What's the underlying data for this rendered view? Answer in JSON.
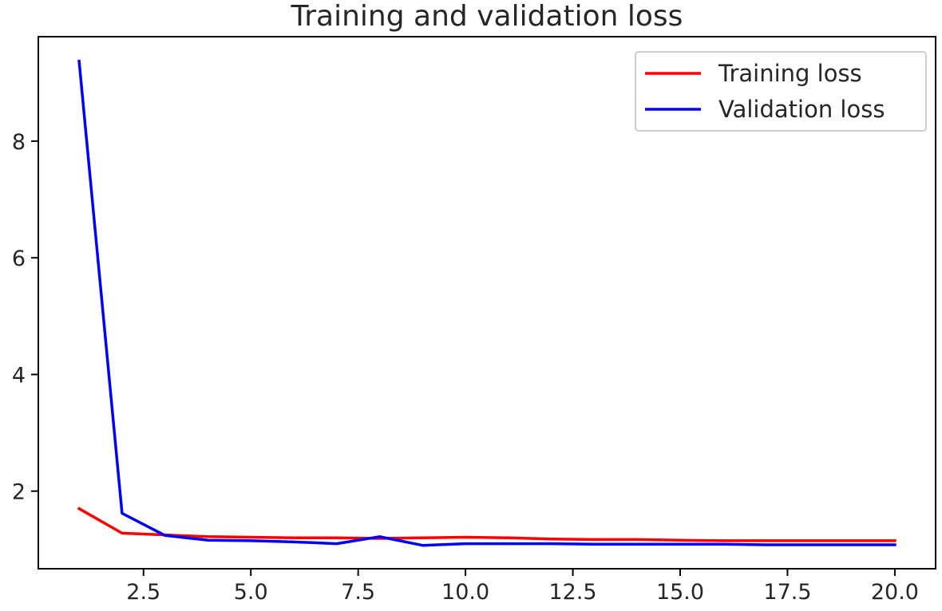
{
  "chart_data": {
    "type": "line",
    "title": "Training and validation loss",
    "xlabel": "",
    "ylabel": "",
    "x": [
      1,
      2,
      3,
      4,
      5,
      6,
      7,
      8,
      9,
      10,
      11,
      12,
      13,
      14,
      15,
      16,
      17,
      18,
      19,
      20
    ],
    "series": [
      {
        "name": "Training loss",
        "color": "#ff0000",
        "values": [
          1.7,
          1.28,
          1.25,
          1.22,
          1.21,
          1.2,
          1.2,
          1.19,
          1.2,
          1.21,
          1.2,
          1.18,
          1.17,
          1.17,
          1.16,
          1.15,
          1.15,
          1.15,
          1.15,
          1.15
        ]
      },
      {
        "name": "Validation loss",
        "color": "#0000ff",
        "values": [
          9.37,
          1.62,
          1.24,
          1.16,
          1.15,
          1.13,
          1.1,
          1.22,
          1.07,
          1.1,
          1.1,
          1.1,
          1.09,
          1.09,
          1.09,
          1.09,
          1.08,
          1.08,
          1.08,
          1.08
        ]
      }
    ],
    "xlim": [
      0.05,
      20.95
    ],
    "ylim": [
      0.67,
      9.79
    ],
    "xticks": [
      "2.5",
      "5.0",
      "7.5",
      "10.0",
      "12.5",
      "15.0",
      "17.5",
      "20.0"
    ],
    "yticks": [
      "2",
      "4",
      "6",
      "8"
    ],
    "grid": false,
    "legend_position": "top-right"
  }
}
